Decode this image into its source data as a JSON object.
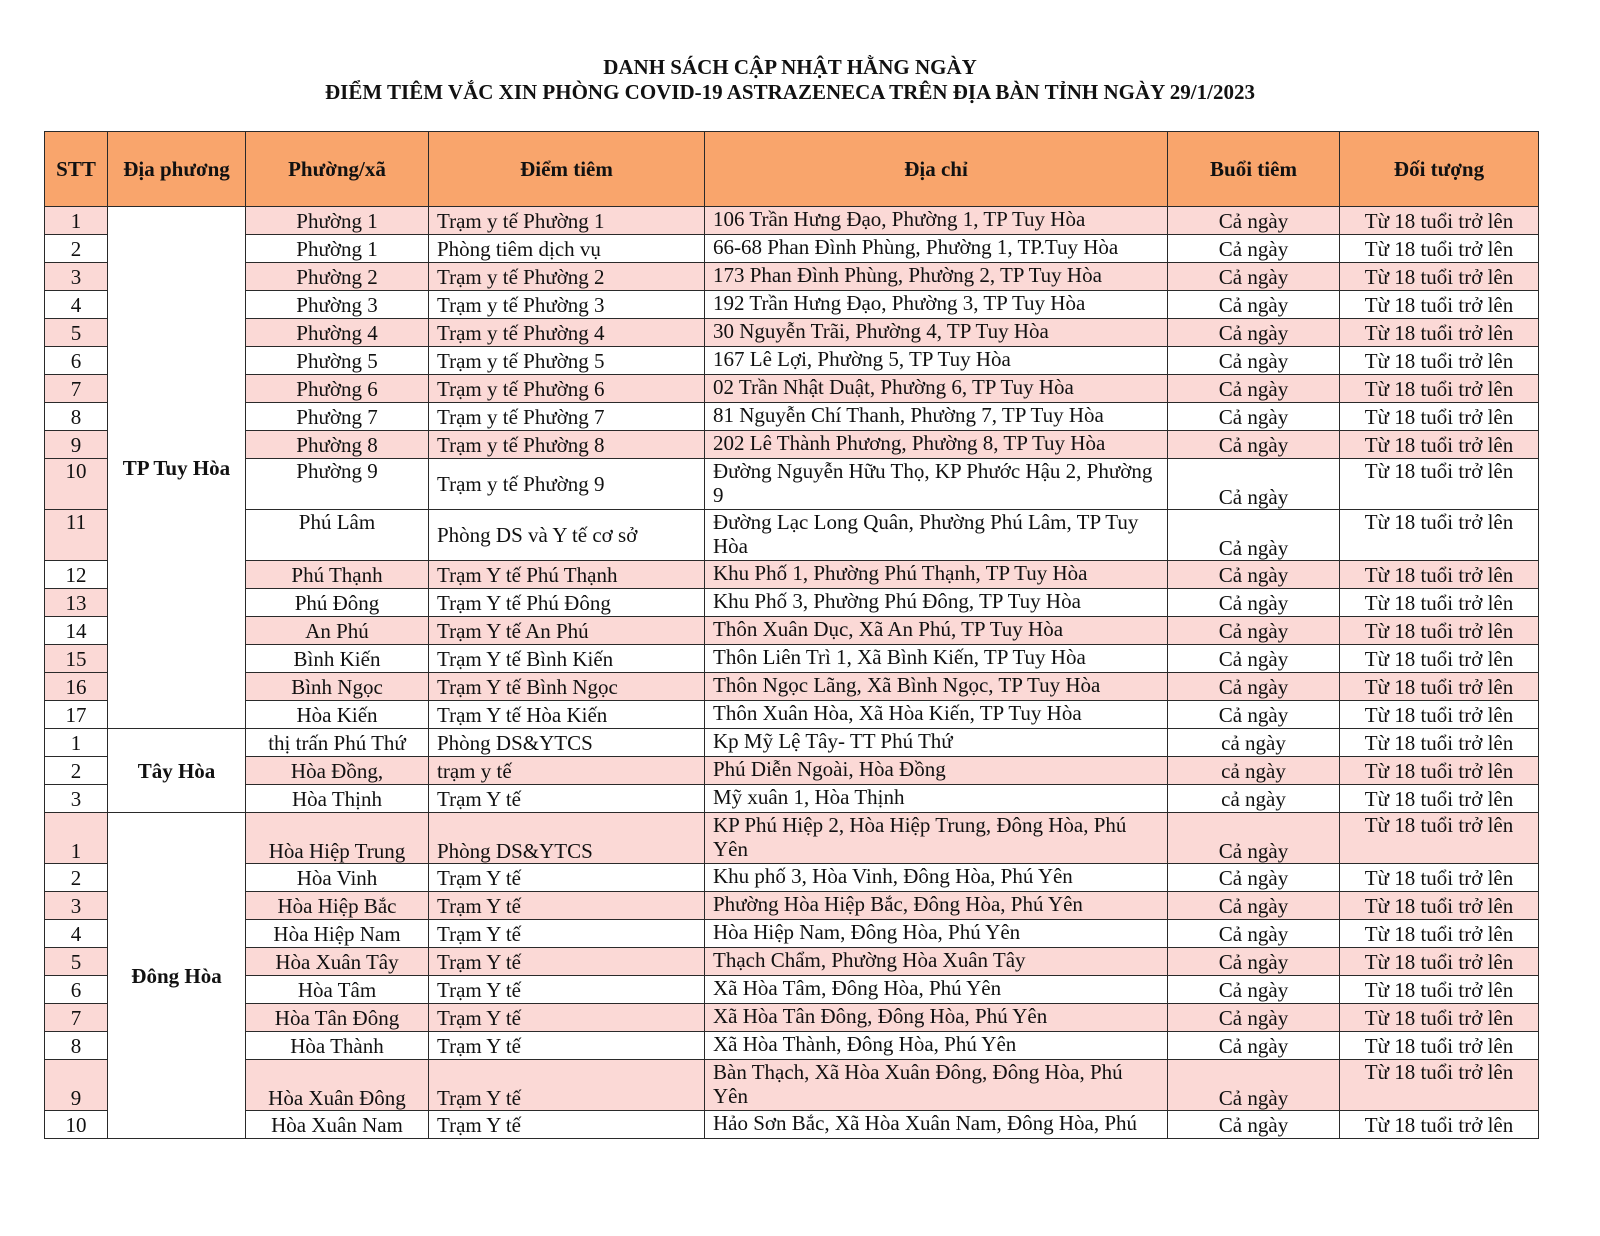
{
  "title_line1": "DANH SÁCH CẬP NHẬT HẰNG NGÀY",
  "title_line2": "ĐIỂM TIÊM VẮC XIN PHÒNG COVID-19 ASTRAZENECA TRÊN ĐỊA BÀN TỈNH NGÀY 29/1/2023",
  "colors": {
    "header": "#f9a56c",
    "highlight_row": "#fbd9d6"
  },
  "columns": [
    "STT",
    "Địa phương",
    "Phường/xã",
    "Điểm tiêm",
    "Địa chỉ",
    "Buổi tiêm",
    "Đối tượng"
  ],
  "groups": [
    {
      "name": "TP Tuy Hòa",
      "rows": [
        {
          "stt": "1",
          "ward": "Phường 1",
          "site": "Trạm y tế Phường 1",
          "address": "106 Trần Hưng Đạo, Phường 1, TP Tuy Hòa",
          "session": "Cả ngày",
          "target": "Từ 18 tuổi trở lên",
          "highlight": true,
          "stt_highlight": true
        },
        {
          "stt": "2",
          "ward": "Phường 1",
          "site": "Phòng tiêm dịch vụ",
          "address": "66-68 Phan Đình Phùng, Phường 1, TP.Tuy Hòa",
          "session": "Cả ngày",
          "target": "Từ 18 tuổi trở lên",
          "highlight": false,
          "stt_highlight": false
        },
        {
          "stt": "3",
          "ward": "Phường 2",
          "site": "Trạm y tế Phường 2",
          "address": "173 Phan Đình Phùng, Phường 2, TP Tuy Hòa",
          "session": "Cả ngày",
          "target": "Từ 18 tuổi trở lên",
          "highlight": true,
          "stt_highlight": true
        },
        {
          "stt": "4",
          "ward": "Phường 3",
          "site": "Trạm y tế Phường 3",
          "address": "192 Trần Hưng Đạo, Phường 3, TP Tuy Hòa",
          "session": "Cả ngày",
          "target": "Từ 18 tuổi trở lên",
          "highlight": false,
          "stt_highlight": false
        },
        {
          "stt": "5",
          "ward": "Phường 4",
          "site": "Trạm y tế Phường 4",
          "address": "30 Nguyễn Trãi, Phường 4, TP Tuy Hòa",
          "session": "Cả ngày",
          "target": "Từ 18 tuổi trở lên",
          "highlight": true,
          "stt_highlight": true
        },
        {
          "stt": "6",
          "ward": "Phường 5",
          "site": "Trạm y tế Phường 5",
          "address": "167 Lê Lợi, Phường 5, TP Tuy Hòa",
          "session": "Cả ngày",
          "target": "Từ 18 tuổi trở lên",
          "highlight": false,
          "stt_highlight": false
        },
        {
          "stt": "7",
          "ward": "Phường 6",
          "site": "Trạm y tế Phường 6",
          "address": "02 Trần Nhật Duật, Phường 6, TP Tuy Hòa",
          "session": "Cả ngày",
          "target": "Từ 18 tuổi trở lên",
          "highlight": true,
          "stt_highlight": true
        },
        {
          "stt": "8",
          "ward": "Phường 7",
          "site": "Trạm y tế Phường 7",
          "address": "81 Nguyễn Chí Thanh, Phường 7, TP Tuy Hòa",
          "session": "Cả ngày",
          "target": "Từ 18 tuổi trở lên",
          "highlight": false,
          "stt_highlight": false
        },
        {
          "stt": "9",
          "ward": "Phường 8",
          "site": "Trạm y tế Phường 8",
          "address": "202 Lê Thành Phương, Phường 8, TP Tuy Hòa",
          "session": "Cả ngày",
          "target": "Từ 18 tuổi trở lên",
          "highlight": true,
          "stt_highlight": true
        },
        {
          "stt": "10",
          "ward": "Phường 9",
          "site": "Trạm y tế Phường 9",
          "address": "Đường Nguyễn Hữu Thọ, KP Phước Hậu 2, Phường 9",
          "session": "Cả ngày",
          "target": "Từ 18 tuổi trở lên",
          "highlight": false,
          "stt_highlight": true
        },
        {
          "stt": "11",
          "ward": "Phú Lâm",
          "site": "Phòng DS và Y tế cơ sở",
          "address": "Đường Lạc Long Quân, Phường Phú Lâm, TP Tuy Hòa",
          "session": "Cả ngày",
          "target": "Từ 18 tuổi trở lên",
          "highlight": false,
          "stt_highlight": true
        },
        {
          "stt": "12",
          "ward": "Phú Thạnh",
          "site": "Trạm Y tế Phú Thạnh",
          "address": "Khu Phố 1, Phường Phú Thạnh, TP Tuy Hòa",
          "session": "Cả ngày",
          "target": "Từ 18 tuổi trở lên",
          "highlight": true,
          "stt_highlight": false
        },
        {
          "stt": "13",
          "ward": "Phú Đông",
          "site": "Trạm Y tế Phú Đông",
          "address": "Khu Phố 3, Phường Phú Đông, TP Tuy Hòa",
          "session": "Cả ngày",
          "target": "Từ 18 tuổi trở lên",
          "highlight": false,
          "stt_highlight": true
        },
        {
          "stt": "14",
          "ward": "An Phú",
          "site": "Trạm Y tế An Phú",
          "address": "Thôn Xuân Dục, Xã An Phú, TP Tuy Hòa",
          "session": "Cả ngày",
          "target": "Từ 18 tuổi trở lên",
          "highlight": true,
          "stt_highlight": false
        },
        {
          "stt": "15",
          "ward": "Bình Kiến",
          "site": "Trạm Y tế Bình Kiến",
          "address": "Thôn Liên Trì 1, Xã Bình Kiến, TP Tuy Hòa",
          "session": "Cả ngày",
          "target": "Từ 18 tuổi trở lên",
          "highlight": false,
          "stt_highlight": true
        },
        {
          "stt": "16",
          "ward": "Bình Ngọc",
          "site": "Trạm Y tế Bình Ngọc",
          "address": "Thôn Ngọc Lãng, Xã Bình Ngọc, TP Tuy Hòa",
          "session": "Cả ngày",
          "target": "Từ 18 tuổi trở lên",
          "highlight": true,
          "stt_highlight": true
        },
        {
          "stt": "17",
          "ward": "Hòa Kiến",
          "site": "Trạm Y tế Hòa Kiến",
          "address": "Thôn Xuân Hòa, Xã Hòa Kiến, TP Tuy Hòa",
          "session": "Cả ngày",
          "target": "Từ 18 tuổi trở lên",
          "highlight": false,
          "stt_highlight": false
        }
      ]
    },
    {
      "name": "Tây Hòa",
      "rows": [
        {
          "stt": "1",
          "ward": "thị trấn Phú Thứ",
          "site": "Phòng DS&YTCS",
          "address": "Kp Mỹ Lệ Tây- TT Phú Thứ",
          "session": "cả ngày",
          "target": "Từ 18 tuổi trở lên",
          "highlight": false,
          "stt_highlight": false
        },
        {
          "stt": "2",
          "ward": "Hòa Đồng,",
          "site": "trạm y tế",
          "address": "Phú Diễn Ngoài, Hòa Đồng",
          "session": "cả ngày",
          "target": "Từ 18 tuổi trở lên",
          "highlight": true,
          "stt_highlight": false
        },
        {
          "stt": "3",
          "ward": "Hòa Thịnh",
          "site": "Trạm Y tế",
          "address": "Mỹ xuân 1, Hòa Thịnh",
          "session": "cả ngày",
          "target": "Từ 18 tuổi trở lên",
          "highlight": false,
          "stt_highlight": false
        }
      ]
    },
    {
      "name": "Đông Hòa",
      "rows": [
        {
          "stt": "1",
          "ward": "Hòa Hiệp Trung",
          "site": "Phòng DS&YTCS",
          "address": "KP Phú Hiệp 2, Hòa Hiệp Trung, Đông Hòa, Phú Yên",
          "session": "Cả ngày",
          "target": "Từ 18 tuổi trở lên",
          "highlight": true,
          "stt_highlight": true
        },
        {
          "stt": "2",
          "ward": "Hòa Vinh",
          "site": "Trạm Y tế",
          "address": "Khu phố 3, Hòa Vinh, Đông Hòa, Phú Yên",
          "session": "Cả ngày",
          "target": "Từ 18 tuổi trở lên",
          "highlight": false,
          "stt_highlight": false
        },
        {
          "stt": "3",
          "ward": "Hòa Hiệp Bắc",
          "site": "Trạm Y tế",
          "address": "Phường Hòa Hiệp Bắc, Đông Hòa, Phú Yên",
          "session": "Cả ngày",
          "target": "Từ 18 tuổi trở lên",
          "highlight": true,
          "stt_highlight": true
        },
        {
          "stt": "4",
          "ward": "Hòa Hiệp Nam",
          "site": "Trạm Y tế",
          "address": "Hòa Hiệp Nam, Đông Hòa, Phú Yên",
          "session": "Cả ngày",
          "target": "Từ 18 tuổi trở lên",
          "highlight": false,
          "stt_highlight": false
        },
        {
          "stt": "5",
          "ward": "Hòa Xuân Tây",
          "site": "Trạm Y tế",
          "address": "Thạch Chẩm, Phường Hòa Xuân Tây",
          "session": "Cả ngày",
          "target": "Từ 18 tuổi trở lên",
          "highlight": true,
          "stt_highlight": true
        },
        {
          "stt": "6",
          "ward": "Hòa Tâm",
          "site": "Trạm Y tế",
          "address": "Xã Hòa Tâm, Đông Hòa, Phú Yên",
          "session": "Cả ngày",
          "target": "Từ 18 tuổi trở lên",
          "highlight": false,
          "stt_highlight": false
        },
        {
          "stt": "7",
          "ward": "Hòa Tân Đông",
          "site": "Trạm Y tế",
          "address": "Xã Hòa Tân Đông, Đông Hòa, Phú Yên",
          "session": "Cả ngày",
          "target": "Từ 18 tuổi trở lên",
          "highlight": true,
          "stt_highlight": true
        },
        {
          "stt": "8",
          "ward": "Hòa Thành",
          "site": "Trạm Y tế",
          "address": "Xã Hòa Thành, Đông Hòa, Phú Yên",
          "session": "Cả ngày",
          "target": "Từ 18 tuổi trở lên",
          "highlight": false,
          "stt_highlight": false
        },
        {
          "stt": "9",
          "ward": "Hòa Xuân Đông",
          "site": "Trạm Y tế",
          "address": "Bàn Thạch, Xã Hòa Xuân Đông, Đông Hòa, Phú Yên",
          "session": "Cả ngày",
          "target": "Từ 18 tuổi trở lên",
          "highlight": true,
          "stt_highlight": true
        },
        {
          "stt": "10",
          "ward": "Hòa Xuân Nam",
          "site": "Trạm Y tế",
          "address": "Hảo Sơn Bắc, Xã Hòa Xuân Nam, Đông Hòa, Phú",
          "session": "Cả ngày",
          "target": "Từ 18 tuổi trở lên",
          "highlight": false,
          "stt_highlight": false
        }
      ]
    }
  ]
}
